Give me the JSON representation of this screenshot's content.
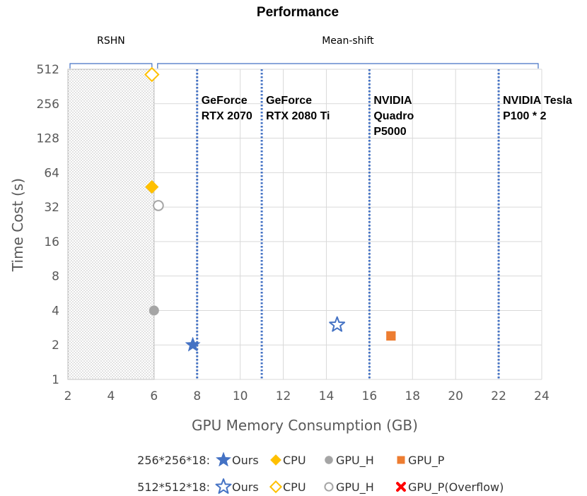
{
  "chart_data": {
    "type": "scatter",
    "title": "Performance",
    "xlabel": "GPU Memory Consumption (GB)",
    "ylabel": "Time Cost (s)",
    "xlim": [
      2,
      24
    ],
    "ylim": [
      1,
      512
    ],
    "yscale": "log2",
    "x_ticks": [
      2,
      4,
      6,
      8,
      10,
      12,
      14,
      16,
      18,
      20,
      22,
      24
    ],
    "y_ticks": [
      1,
      2,
      4,
      8,
      16,
      32,
      64,
      128,
      256,
      512
    ],
    "regions": [
      {
        "name": "RSHN",
        "x_range": [
          2,
          6
        ],
        "hatched": true
      },
      {
        "name": "Mean-shift",
        "x_range": [
          6,
          24
        ],
        "hatched": false
      }
    ],
    "gpu_lines": [
      {
        "x": 8,
        "label_lines": [
          "GeForce",
          "RTX 2070"
        ]
      },
      {
        "x": 11,
        "label_lines": [
          "GeForce",
          "RTX 2080 Ti"
        ]
      },
      {
        "x": 16,
        "label_lines": [
          "NVIDIA",
          "Quadro",
          "P5000"
        ]
      },
      {
        "x": 22,
        "label_lines": [
          "NVIDIA Tesla",
          "P100 * 2"
        ]
      }
    ],
    "series": [
      {
        "name": "Ours",
        "size": "256*256*18",
        "marker": "star",
        "filled": true,
        "color": "#4472C4",
        "points": [
          {
            "x": 7.8,
            "y": 2
          }
        ]
      },
      {
        "name": "CPU",
        "size": "256*256*18",
        "marker": "diamond",
        "filled": true,
        "color": "#FFC000",
        "points": [
          {
            "x": 5.9,
            "y": 48
          }
        ]
      },
      {
        "name": "GPU_H",
        "size": "256*256*18",
        "marker": "circle",
        "filled": true,
        "color": "#A5A5A5",
        "points": [
          {
            "x": 6.0,
            "y": 4
          }
        ]
      },
      {
        "name": "GPU_P",
        "size": "256*256*18",
        "marker": "square",
        "filled": true,
        "color": "#ED7D31",
        "points": [
          {
            "x": 17.0,
            "y": 2.4
          }
        ]
      },
      {
        "name": "Ours",
        "size": "512*512*18",
        "marker": "star",
        "filled": false,
        "color": "#4472C4",
        "points": [
          {
            "x": 14.5,
            "y": 3
          }
        ]
      },
      {
        "name": "CPU",
        "size": "512*512*18",
        "marker": "diamond",
        "filled": false,
        "color": "#FFC000",
        "points": [
          {
            "x": 5.9,
            "y": 460
          }
        ]
      },
      {
        "name": "GPU_H",
        "size": "512*512*18",
        "marker": "circle",
        "filled": false,
        "color": "#A5A5A5",
        "points": [
          {
            "x": 6.2,
            "y": 33
          }
        ]
      },
      {
        "name": "GPU_P(Overflow)",
        "size": "512*512*18",
        "marker": "cross",
        "filled": true,
        "color": "#FF0000",
        "points": []
      }
    ],
    "legend": {
      "placement": "bottom",
      "rows": [
        {
          "label": "256*256*18:",
          "entries": [
            {
              "text": "Ours",
              "marker": "star",
              "filled": true,
              "color": "#4472C4"
            },
            {
              "text": "CPU",
              "marker": "diamond",
              "filled": true,
              "color": "#FFC000"
            },
            {
              "text": "GPU_H",
              "marker": "circle",
              "filled": true,
              "color": "#A5A5A5"
            },
            {
              "text": "GPU_P",
              "marker": "square",
              "filled": true,
              "color": "#ED7D31"
            }
          ]
        },
        {
          "label": "512*512*18:",
          "entries": [
            {
              "text": "Ours",
              "marker": "star",
              "filled": false,
              "color": "#4472C4"
            },
            {
              "text": "CPU",
              "marker": "diamond",
              "filled": false,
              "color": "#FFC000"
            },
            {
              "text": "GPU_H",
              "marker": "circle",
              "filled": false,
              "color": "#A5A5A5"
            },
            {
              "text": "GPU_P(Overflow)",
              "marker": "cross",
              "filled": true,
              "color": "#FF0000"
            }
          ]
        }
      ]
    }
  }
}
